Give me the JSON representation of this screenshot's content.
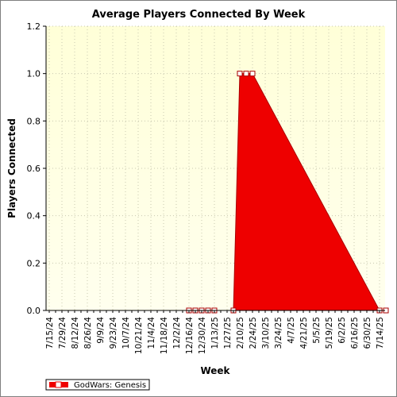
{
  "chart_data": {
    "type": "area",
    "title": "Average Players Connected By Week",
    "xlabel": "Week",
    "ylabel": "Players Connected",
    "ylim": [
      0,
      1.2
    ],
    "yticks": [
      "0.0",
      "0.2",
      "0.4",
      "0.6",
      "0.8",
      "1.0",
      "1.2"
    ],
    "x_tick_labels": [
      "7/15/24",
      "7/29/24",
      "8/12/24",
      "8/26/24",
      "9/9/24",
      "9/23/24",
      "10/7/24",
      "10/21/24",
      "11/4/24",
      "11/18/24",
      "12/2/24",
      "12/16/24",
      "12/30/24",
      "1/13/25",
      "1/27/25",
      "2/10/25",
      "2/24/25",
      "3/10/25",
      "3/24/25",
      "4/7/25",
      "4/21/25",
      "5/5/25",
      "5/19/25",
      "6/2/25",
      "6/16/25",
      "6/30/25",
      "7/14/25"
    ],
    "x": [
      "12/16/24",
      "12/23/24",
      "12/30/24",
      "1/6/25",
      "1/13/25",
      "2/3/25",
      "2/10/25",
      "2/17/25",
      "2/24/25",
      "7/14/25",
      "7/21/25"
    ],
    "series": [
      {
        "name": "GodWars: Genesis",
        "color": "#ee0000",
        "values": [
          0,
          0,
          0,
          0,
          0,
          0,
          1.0,
          1.0,
          1.0,
          0,
          0
        ]
      }
    ],
    "grid": true,
    "legend": "bottom-left",
    "plot_background": "#ffffdd"
  }
}
